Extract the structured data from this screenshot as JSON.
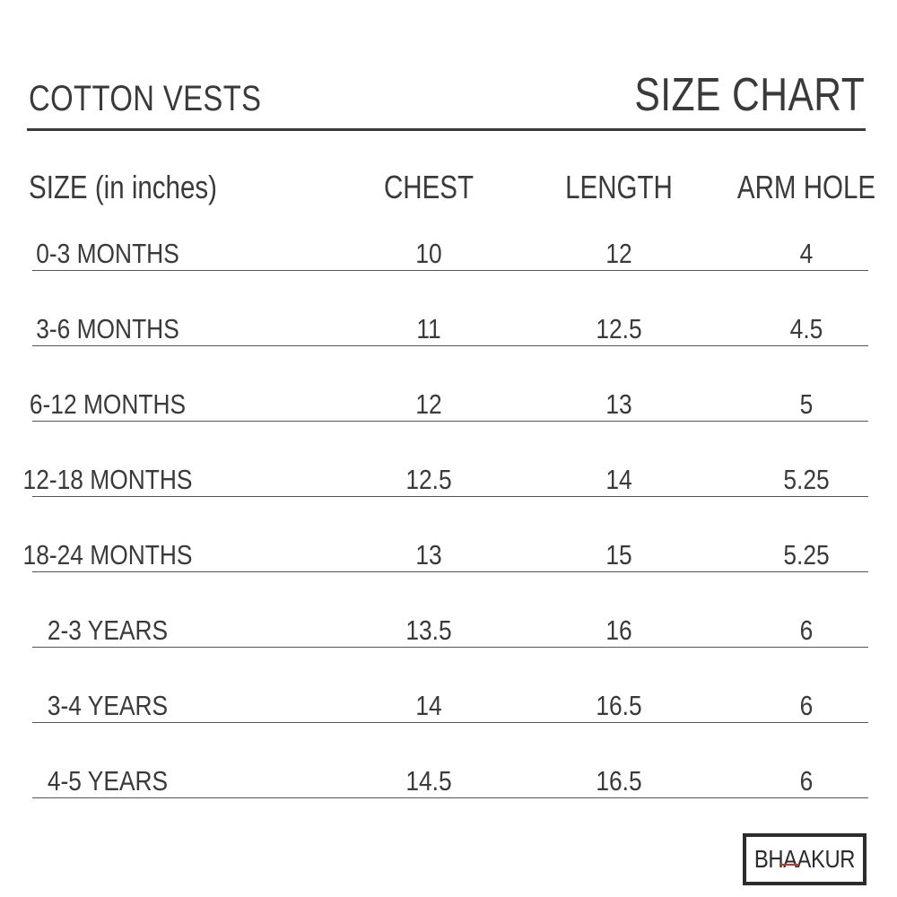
{
  "header": {
    "product_title": "COTTON VESTS",
    "chart_title": "SIZE CHART"
  },
  "table": {
    "columns": [
      "SIZE (in inches)",
      "CHEST",
      "LENGTH",
      "ARM HOLE"
    ],
    "rows": [
      {
        "size": "0-3 MONTHS",
        "chest": "10",
        "length": "12",
        "arm_hole": "4"
      },
      {
        "size": "3-6 MONTHS",
        "chest": "11",
        "length": "12.5",
        "arm_hole": "4.5"
      },
      {
        "size": "6-12 MONTHS",
        "chest": "12",
        "length": "13",
        "arm_hole": "5"
      },
      {
        "size": "12-18 MONTHS",
        "chest": "12.5",
        "length": "14",
        "arm_hole": "5.25"
      },
      {
        "size": "18-24 MONTHS",
        "chest": "13",
        "length": "15",
        "arm_hole": "5.25"
      },
      {
        "size": "2-3 YEARS",
        "chest": "13.5",
        "length": "16",
        "arm_hole": "6"
      },
      {
        "size": "3-4 YEARS",
        "chest": "14",
        "length": "16.5",
        "arm_hole": "6"
      },
      {
        "size": "4-5 YEARS",
        "chest": "14.5",
        "length": "16.5",
        "arm_hole": "6"
      }
    ]
  },
  "brand": {
    "logo_text": "BHAAKUR",
    "accent_color": "#c0392b"
  }
}
